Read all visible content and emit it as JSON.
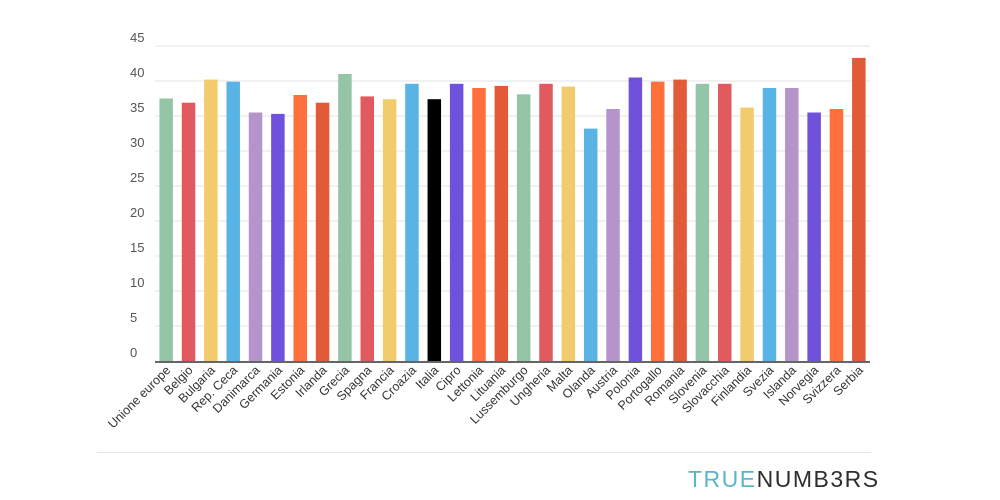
{
  "brand": {
    "part1": "TRUE",
    "part2": "NUMB3RS"
  },
  "chart_data": {
    "type": "bar",
    "title": "",
    "xlabel": "",
    "ylabel": "",
    "ylim": [
      0,
      45
    ],
    "yticks": [
      0,
      5,
      10,
      15,
      20,
      25,
      30,
      35,
      40,
      45
    ],
    "grid": true,
    "categories": [
      "Unione europe",
      "Belgio",
      "Bulgaria",
      "Rep. Ceca",
      "Danimarca",
      "Germania",
      "Estonia",
      "Irlanda",
      "Grecia",
      "Spagna",
      "Francia",
      "Croazia",
      "Italia",
      "Cipro",
      "Lettonia",
      "Lituania",
      "Lussemburgo",
      "Ungheria",
      "Malta",
      "Olanda",
      "Austria",
      "Polonia",
      "Portogallo",
      "Romania",
      "Slovenia",
      "Slovacchia",
      "Finlandia",
      "Svezia",
      "Islanda",
      "Norvegia",
      "Svizzera",
      "Serbia"
    ],
    "values": [
      37.5,
      36.9,
      40.2,
      39.9,
      35.5,
      35.3,
      38.0,
      36.9,
      41.0,
      37.8,
      37.4,
      39.6,
      37.4,
      39.6,
      39.0,
      39.3,
      38.1,
      39.6,
      39.2,
      33.2,
      36.0,
      40.5,
      39.9,
      40.2,
      39.6,
      39.6,
      36.2,
      39.0,
      39.0,
      35.5,
      36.0,
      43.3
    ],
    "colors": [
      "#93c5a6",
      "#e15a5f",
      "#f2cb6c",
      "#5ab3e5",
      "#b594cc",
      "#7051dc",
      "#ff6f3b",
      "#e25a38",
      "#93c5a6",
      "#e15a5f",
      "#f2cb6c",
      "#5ab3e5",
      "#000000",
      "#7051dc",
      "#ff6f3b",
      "#e25a38",
      "#93c5a6",
      "#e15a5f",
      "#f2cb6c",
      "#5ab3e5",
      "#b594cc",
      "#7051dc",
      "#ff6f3b",
      "#e25a38",
      "#93c5a6",
      "#e15a5f",
      "#f2cb6c",
      "#5ab3e5",
      "#b594cc",
      "#7051dc",
      "#ff6f3b",
      "#e25a38"
    ]
  }
}
